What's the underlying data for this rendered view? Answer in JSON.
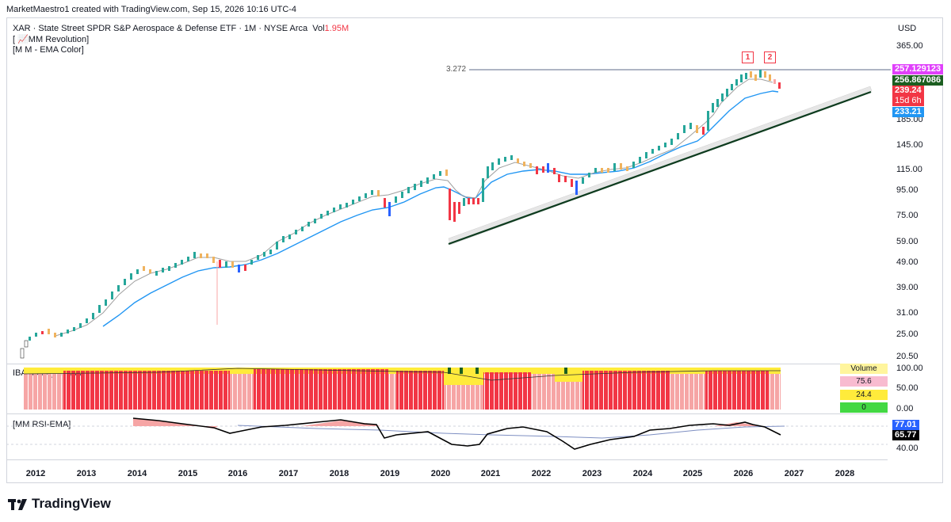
{
  "header": {
    "text": "MarketMaestro1 created with TradingView.com, Sep 15, 2026 10:16 UTC-4"
  },
  "legend": {
    "symbol_line": "XAR · State Street SPDR S&P Aerospace & Defense ETF · 1M · NYSE Arca",
    "vol_label": "Vol",
    "vol_value": "1.95M",
    "indicator1": "[ 📈MM Revolution]",
    "indicator2": "[M M - EMA Color]"
  },
  "currency": "USD",
  "price_axis": [
    "365.00",
    "185.00",
    "145.00",
    "115.00",
    "95.00",
    "75.00",
    "59.00",
    "49.00",
    "39.00",
    "31.00",
    "25.00",
    "20.50"
  ],
  "price_tags": [
    {
      "label": "257.129123",
      "color": "#e040fb"
    },
    {
      "label": "256.867086",
      "color": "#1b5e20"
    },
    {
      "label": "239.24",
      "color": "#f23645"
    },
    {
      "label": "15d 6h",
      "color": "#f23645"
    },
    {
      "label": "233.21",
      "color": "#2196f3"
    }
  ],
  "horizontal_line_label": "3.272",
  "markers": [
    "1",
    "2"
  ],
  "money_flow": {
    "title": "IBA-Money Triflux",
    "axis": [
      "100.00",
      "50.00",
      "0.00"
    ],
    "boxes": [
      {
        "label": "Volume",
        "color": "#fff59d"
      },
      {
        "label": "75.6",
        "color": "#f8bbd0"
      },
      {
        "label": "24.4",
        "color": "#ffeb3b"
      },
      {
        "label": "0",
        "color": "#43d843"
      }
    ]
  },
  "rsi": {
    "title": "[MM RSI-EMA]",
    "axis": [
      "40.00"
    ],
    "tags": [
      {
        "label": "77.01",
        "color": "#2962ff"
      },
      {
        "label": "65.77",
        "color": "#000000"
      }
    ]
  },
  "x_axis": [
    "2012",
    "2013",
    "2014",
    "2015",
    "2016",
    "2017",
    "2018",
    "2019",
    "2020",
    "2021",
    "2022",
    "2023",
    "2024",
    "2025",
    "2026",
    "2027",
    "2028"
  ],
  "brand": "TradingView"
}
